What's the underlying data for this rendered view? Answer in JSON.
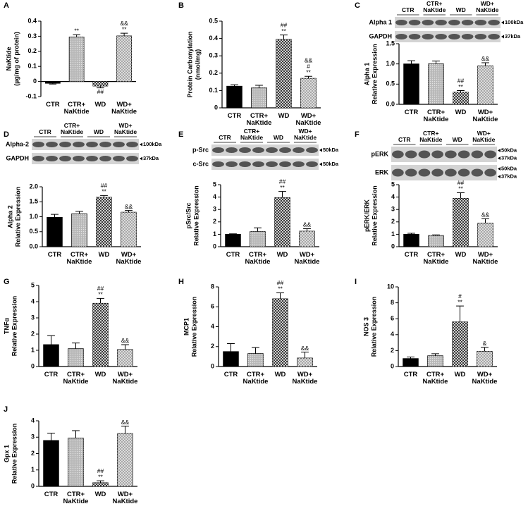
{
  "chart_data": [
    {
      "type": "bar",
      "panel": "A",
      "ylabel": [
        "NaKtide",
        "(µg/mg of protein)"
      ],
      "categories": [
        "CTR",
        "CTR+ NaKtide",
        "WD",
        "WD+ NaKtide"
      ],
      "values": [
        -0.012,
        0.295,
        -0.03,
        0.302
      ],
      "errors": [
        0.005,
        0.015,
        0.012,
        0.018
      ],
      "annotations": [
        [],
        [
          "**"
        ],
        [
          "##"
        ],
        [
          "&&",
          "**"
        ]
      ],
      "colors": [
        "#000000",
        "#b8b8b8",
        "#3c3c3c",
        "#a8a8a8"
      ],
      "ylim": [
        -0.1,
        0.4
      ],
      "yticks": [
        -0.1,
        0,
        0.1,
        0.2,
        0.3,
        0.4
      ]
    },
    {
      "type": "bar",
      "panel": "B",
      "ylabel": [
        "Protein Carbonylation",
        "(nmol/mg)"
      ],
      "categories": [
        "CTR",
        "CTR+ NaKtide",
        "WD",
        "WD+ NaKtide"
      ],
      "values": [
        0.125,
        0.115,
        0.395,
        0.17
      ],
      "errors": [
        0.008,
        0.015,
        0.025,
        0.012
      ],
      "annotations": [
        [],
        [],
        [
          "##",
          "**"
        ],
        [
          "&&",
          "#",
          "**"
        ]
      ],
      "colors": [
        "#000000",
        "#b8b8b8",
        "#3c3c3c",
        "#a8a8a8"
      ],
      "ylim": [
        0,
        0.5
      ],
      "yticks": [
        0,
        0.1,
        0.2,
        0.3,
        0.4,
        0.5
      ]
    },
    {
      "type": "bar",
      "panel": "C",
      "ylabel": [
        "Alpha 1",
        "Relative Expression"
      ],
      "categories": [
        "CTR",
        "CTR+ NaKtide",
        "WD",
        "WD+ NaKtide"
      ],
      "values": [
        1.0,
        1.0,
        0.3,
        0.95
      ],
      "errors": [
        0.08,
        0.07,
        0.04,
        0.08
      ],
      "annotations": [
        [],
        [],
        [
          "##",
          "**"
        ],
        [
          "&&"
        ]
      ],
      "colors": [
        "#000000",
        "#b8b8b8",
        "#3c3c3c",
        "#a8a8a8"
      ],
      "ylim": [
        0,
        1.5
      ],
      "yticks": [
        {
          "value": 0,
          "label": "0.0"
        },
        0.5,
        {
          "value": 1,
          "label": "1.0"
        },
        1.5
      ],
      "blot": {
        "groups": [
          "CTR",
          "CTR+ NaKtide",
          "WD",
          "WD+ NaKtide"
        ],
        "rows": [
          {
            "name": "Alpha 1",
            "sizes": [
              "100kDa"
            ]
          },
          {
            "name": "GAPDH",
            "sizes": [
              "37kDa"
            ]
          }
        ]
      }
    },
    {
      "type": "bar",
      "panel": "D",
      "ylabel": [
        "Alpha 2",
        "Relative Expression"
      ],
      "categories": [
        "CTR",
        "CTR+ NaKtide",
        "WD",
        "WD+ NaKtide"
      ],
      "values": [
        0.98,
        1.1,
        1.65,
        1.15
      ],
      "errors": [
        0.1,
        0.08,
        0.06,
        0.06
      ],
      "annotations": [
        [],
        [],
        [
          "##",
          "**"
        ],
        [
          "&&"
        ]
      ],
      "colors": [
        "#000000",
        "#b8b8b8",
        "#3c3c3c",
        "#a8a8a8"
      ],
      "ylim": [
        0,
        2
      ],
      "yticks": [
        {
          "value": 0,
          "label": "0.0"
        },
        0.5,
        {
          "value": 1,
          "label": "1.0"
        },
        1.5,
        {
          "value": 2,
          "label": "2.0"
        }
      ],
      "blot": {
        "groups": [
          "CTR",
          "CTR+ NaKtide",
          "WD",
          "WD+ NaKtide"
        ],
        "rows": [
          {
            "name": "Alpha-2",
            "sizes": [
              "100kDa"
            ]
          },
          {
            "name": "GAPDH",
            "sizes": [
              "37kDa"
            ]
          }
        ]
      }
    },
    {
      "type": "bar",
      "panel": "E",
      "ylabel": [
        "pSrc/Src",
        "Relative Expression"
      ],
      "categories": [
        "CTR",
        "CTR+ NaKtide",
        "WD",
        "WD+ NaKtide"
      ],
      "values": [
        1.0,
        1.22,
        3.95,
        1.25
      ],
      "errors": [
        0.04,
        0.3,
        0.5,
        0.2
      ],
      "annotations": [
        [],
        [],
        [
          "##",
          "**"
        ],
        [
          "&&"
        ]
      ],
      "colors": [
        "#000000",
        "#b8b8b8",
        "#3c3c3c",
        "#a8a8a8"
      ],
      "ylim": [
        0,
        5
      ],
      "yticks": [
        0,
        1,
        2,
        3,
        4,
        5
      ],
      "blot": {
        "groups": [
          "CTR",
          "CTR+ NaKtide",
          "WD",
          "WD+ NaKtide"
        ],
        "rows": [
          {
            "name": "p-Src",
            "sizes": [
              "50kDa"
            ]
          },
          {
            "name": "c-Src",
            "sizes": [
              "50kDa"
            ]
          }
        ]
      }
    },
    {
      "type": "bar",
      "panel": "F",
      "ylabel": [
        "pERK/ERK",
        "Relative Expression"
      ],
      "categories": [
        "CTR",
        "CTR+ NaKtide",
        "WD",
        "WD+ NaKtide"
      ],
      "values": [
        1.0,
        0.9,
        3.9,
        1.9
      ],
      "errors": [
        0.08,
        0.05,
        0.45,
        0.35
      ],
      "annotations": [
        [],
        [],
        [
          "##",
          "**"
        ],
        [
          "&&"
        ]
      ],
      "colors": [
        "#000000",
        "#b8b8b8",
        "#3c3c3c",
        "#a8a8a8"
      ],
      "ylim": [
        0,
        5
      ],
      "yticks": [
        0,
        1,
        2,
        3,
        4,
        5
      ],
      "blot": {
        "groups": [
          "CTR",
          "CTR+ NaKtide",
          "WD",
          "WD+ NaKtide"
        ],
        "rows": [
          {
            "name": "pERK",
            "sizes": [
              "50kDa",
              "37kDa"
            ]
          },
          {
            "name": "ERK",
            "sizes": [
              "50kDa",
              "37kDa"
            ]
          }
        ]
      }
    },
    {
      "type": "bar",
      "panel": "G",
      "ylabel": [
        "TNFα",
        "Relative Expression"
      ],
      "categories": [
        "CTR",
        "CTR+ NaKtide",
        "WD",
        "WD+ NaKtide"
      ],
      "values": [
        1.35,
        1.1,
        3.9,
        1.05
      ],
      "errors": [
        0.55,
        0.35,
        0.3,
        0.3
      ],
      "annotations": [
        [],
        [],
        [
          "##",
          "**"
        ],
        [
          "&&"
        ]
      ],
      "colors": [
        "#000000",
        "#b8b8b8",
        "#3c3c3c",
        "#a8a8a8"
      ],
      "ylim": [
        0,
        5
      ],
      "yticks": [
        0,
        1,
        2,
        3,
        4,
        5
      ]
    },
    {
      "type": "bar",
      "panel": "H",
      "ylabel": [
        "MCP1",
        "Relative Expression"
      ],
      "categories": [
        "CTR",
        "CTR+ NaKtide",
        "WD",
        "WD+ NaKtide"
      ],
      "values": [
        1.5,
        1.3,
        6.8,
        0.85
      ],
      "errors": [
        0.8,
        0.6,
        0.6,
        0.6
      ],
      "annotations": [
        [],
        [],
        [
          "##",
          "**"
        ],
        [
          "&&"
        ]
      ],
      "colors": [
        "#000000",
        "#b8b8b8",
        "#3c3c3c",
        "#a8a8a8"
      ],
      "ylim": [
        0,
        8
      ],
      "yticks": [
        0,
        2,
        4,
        6,
        8
      ]
    },
    {
      "type": "bar",
      "panel": "I",
      "ylabel": [
        "NOS 3",
        "Relative Expression"
      ],
      "categories": [
        "CTR",
        "CTR+ NaKtide",
        "WD",
        "WD+ NaKtide"
      ],
      "values": [
        1.0,
        1.35,
        5.6,
        1.9
      ],
      "errors": [
        0.2,
        0.25,
        2.0,
        0.5
      ],
      "annotations": [
        [],
        [],
        [
          "#",
          "**"
        ],
        [
          "&"
        ]
      ],
      "colors": [
        "#000000",
        "#b8b8b8",
        "#3c3c3c",
        "#a8a8a8"
      ],
      "ylim": [
        0,
        10
      ],
      "yticks": [
        0,
        2,
        4,
        6,
        8,
        10
      ]
    },
    {
      "type": "bar",
      "panel": "J",
      "ylabel": [
        "Gpx 1",
        "Relative Expression"
      ],
      "categories": [
        "CTR",
        "CTR+ NaKtide",
        "WD",
        "WD+ NaKtide"
      ],
      "values": [
        2.8,
        2.95,
        0.22,
        3.22
      ],
      "errors": [
        0.45,
        0.45,
        0.12,
        0.45
      ],
      "annotations": [
        [],
        [],
        [
          "##",
          "**"
        ],
        [
          "&&"
        ]
      ],
      "colors": [
        "#000000",
        "#b8b8b8",
        "#3c3c3c",
        "#a8a8a8"
      ],
      "ylim": [
        0,
        4
      ],
      "yticks": [
        0,
        1,
        2,
        3,
        4
      ]
    }
  ]
}
